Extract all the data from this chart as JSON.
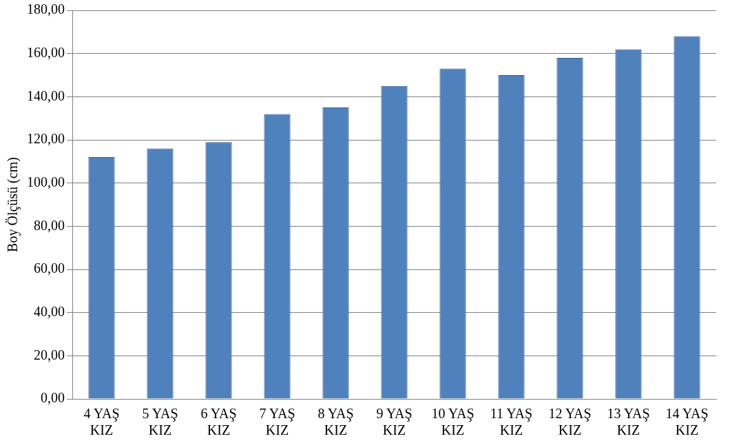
{
  "chart_data": {
    "type": "bar",
    "ylabel": "Boy Ölçüsü (cm)",
    "categories": [
      "4 YAŞ KIZ",
      "5 YAŞ KIZ",
      "6 YAŞ KIZ",
      "7 YAŞ KIZ",
      "8 YAŞ KIZ",
      "9 YAŞ KIZ",
      "10 YAŞ KIZ",
      "11 YAŞ KIZ",
      "12 YAŞ KIZ",
      "13 YAŞ KIZ",
      "14 YAŞ KIZ"
    ],
    "values": [
      112,
      116,
      119,
      132,
      135,
      145,
      153,
      150,
      158,
      162,
      168
    ],
    "color": "#4f81bd",
    "ylim": [
      0,
      180
    ],
    "yticks": [
      {
        "value": 0,
        "label": "0,00"
      },
      {
        "value": 20,
        "label": "20,00"
      },
      {
        "value": 40,
        "label": "40,00"
      },
      {
        "value": 60,
        "label": "60,00"
      },
      {
        "value": 80,
        "label": "80,00"
      },
      {
        "value": 100,
        "label": "100,00"
      },
      {
        "value": 120,
        "label": "120,00"
      },
      {
        "value": 140,
        "label": "140,00"
      },
      {
        "value": 160,
        "label": "160,00"
      },
      {
        "value": 180,
        "label": "180,00"
      }
    ],
    "grid": "y",
    "legend": false
  }
}
